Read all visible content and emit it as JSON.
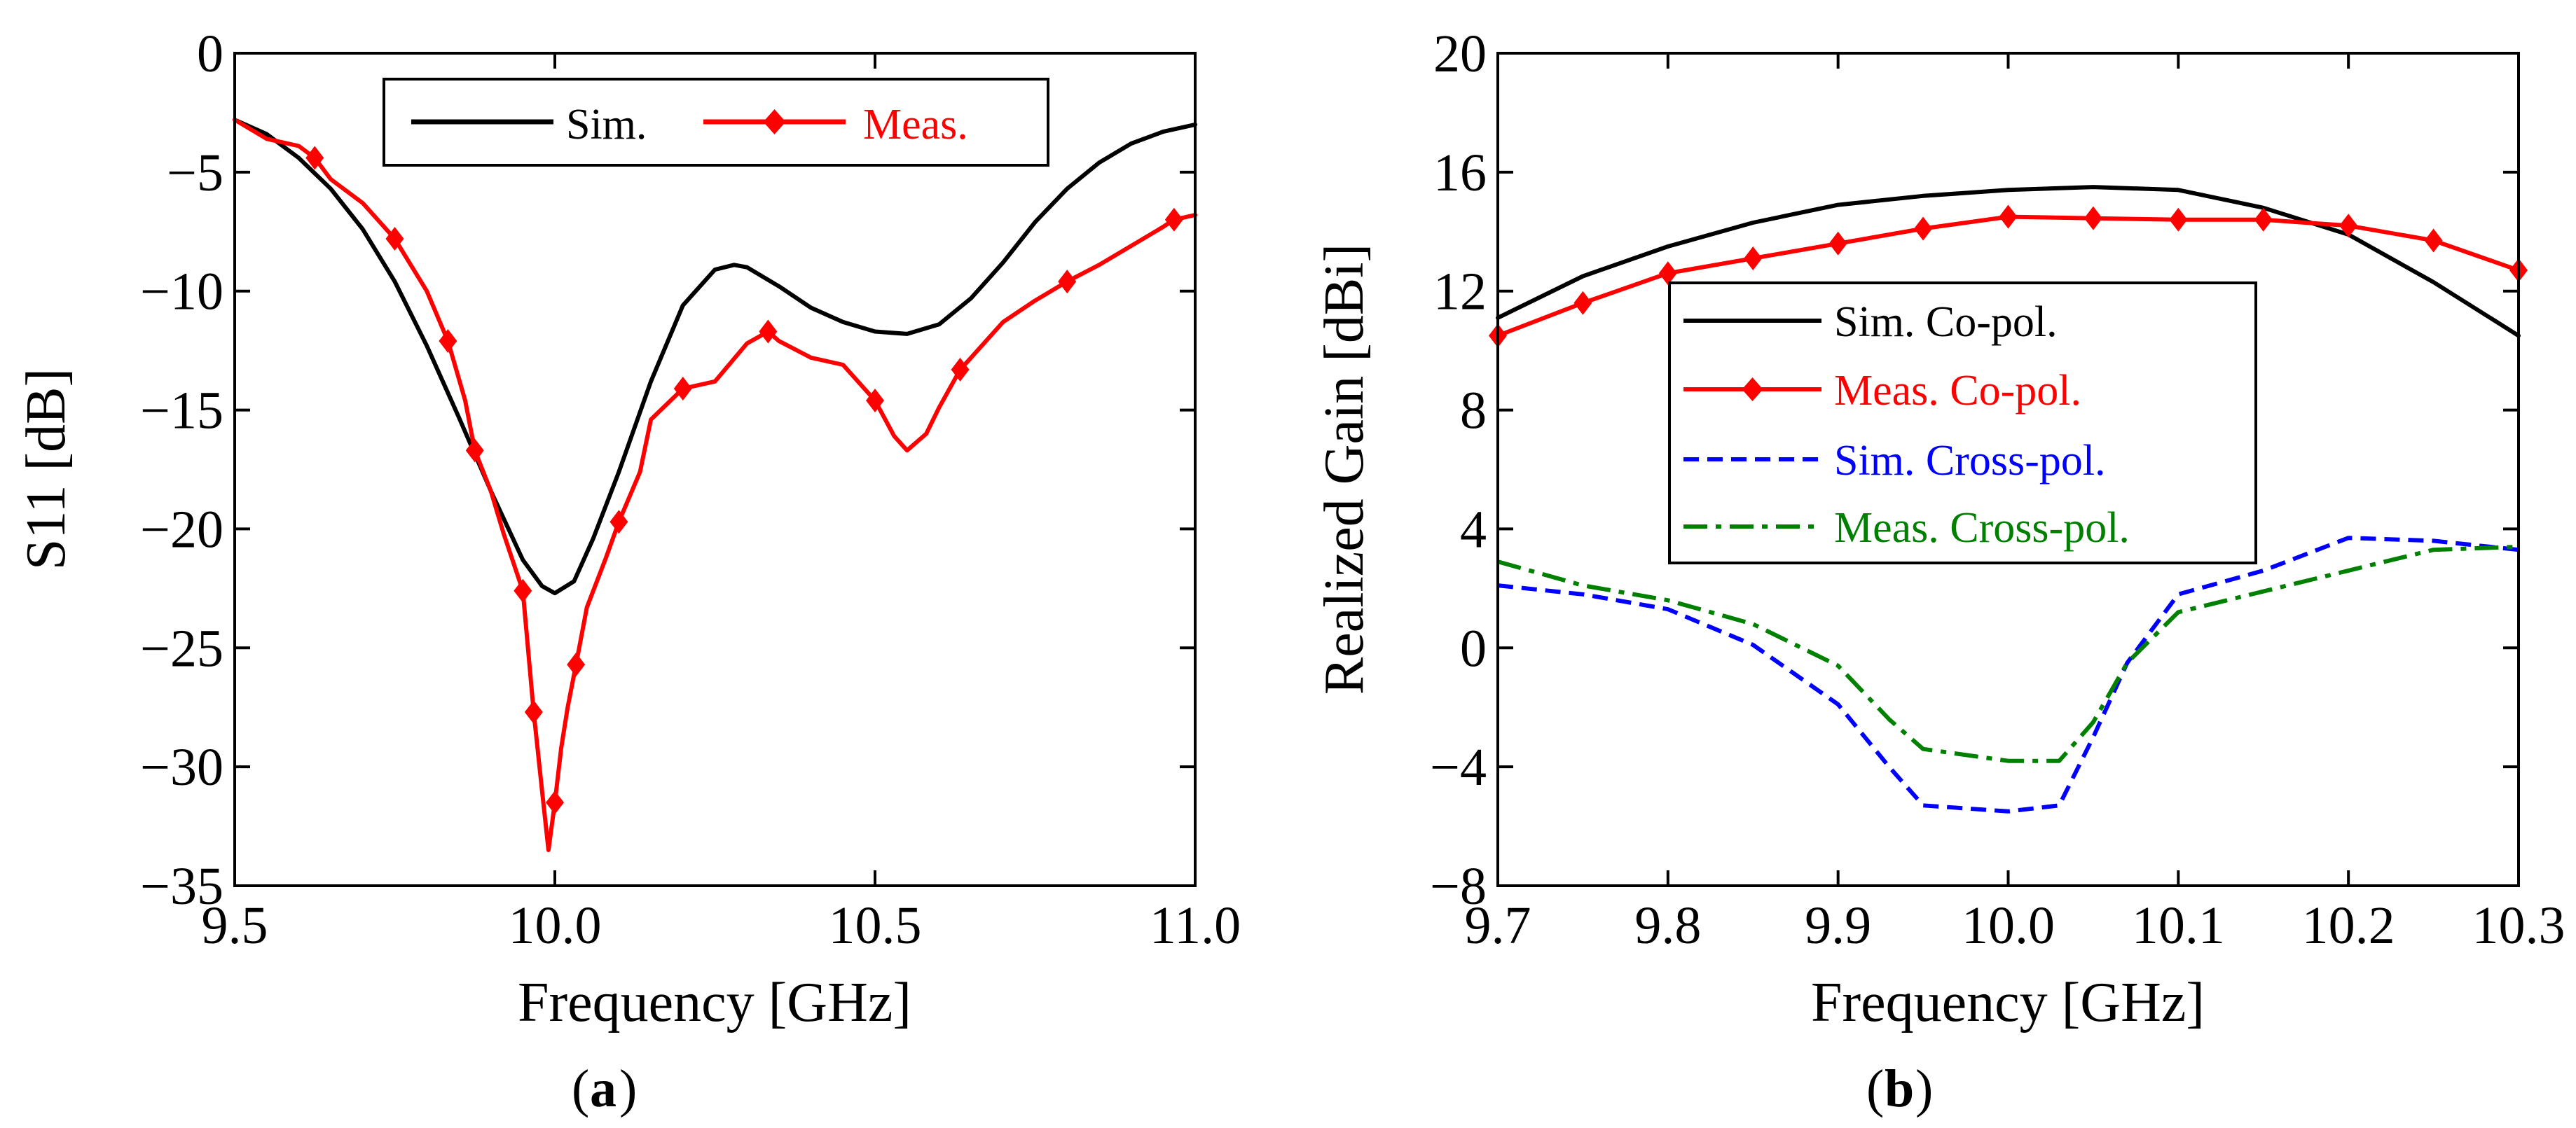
{
  "chart_data": [
    {
      "type": "line",
      "panel": "a",
      "caption_letter": "a",
      "xlabel": "Frequency [GHz]",
      "ylabel": "S11 [dB]",
      "xlim": [
        9.5,
        11.0
      ],
      "ylim": [
        -35,
        0
      ],
      "xticks": [
        9.5,
        10.0,
        10.5,
        11.0
      ],
      "xtick_labels": [
        "9.5",
        "10.0",
        "10.5",
        "11.0"
      ],
      "yticks": [
        0,
        -5,
        -10,
        -15,
        -20,
        -25,
        -30,
        -35
      ],
      "ytick_labels": [
        "0",
        "−5",
        "−10",
        "−15",
        "−20",
        "−25",
        "−30",
        "−35"
      ],
      "legend_position": "top",
      "series": [
        {
          "name": "Sim.",
          "color": "#000000",
          "style": "solid",
          "marker": "none",
          "x": [
            9.5,
            9.55,
            9.6,
            9.65,
            9.7,
            9.75,
            9.8,
            9.85,
            9.9,
            9.95,
            9.98,
            10.0,
            10.03,
            10.06,
            10.1,
            10.15,
            10.2,
            10.25,
            10.28,
            10.3,
            10.35,
            10.4,
            10.45,
            10.5,
            10.55,
            10.6,
            10.65,
            10.7,
            10.75,
            10.8,
            10.85,
            10.9,
            10.95,
            11.0
          ],
          "y": [
            -2.8,
            -3.4,
            -4.4,
            -5.7,
            -7.4,
            -9.6,
            -12.3,
            -15.3,
            -18.4,
            -21.3,
            -22.4,
            -22.7,
            -22.2,
            -20.4,
            -17.6,
            -13.8,
            -10.6,
            -9.1,
            -8.9,
            -9.0,
            -9.8,
            -10.7,
            -11.3,
            -11.7,
            -11.8,
            -11.4,
            -10.3,
            -8.8,
            -7.1,
            -5.7,
            -4.6,
            -3.8,
            -3.3,
            -3.0
          ]
        },
        {
          "name": "Meas.",
          "color": "#ff0000",
          "style": "solid",
          "marker": "diamond",
          "x": [
            9.5,
            9.55,
            9.6,
            9.625,
            9.65,
            9.7,
            9.75,
            9.8,
            9.833,
            9.86,
            9.875,
            9.9,
            9.92,
            9.95,
            9.967,
            9.98,
            9.99,
            10.0,
            10.01,
            10.02,
            10.033,
            10.05,
            10.08,
            10.1,
            10.133,
            10.15,
            10.2,
            10.25,
            10.3,
            10.333,
            10.35,
            10.4,
            10.45,
            10.5,
            10.53,
            10.55,
            10.58,
            10.6,
            10.633,
            10.65,
            10.7,
            10.75,
            10.8,
            10.85,
            10.9,
            10.95,
            10.967,
            11.0
          ],
          "y": [
            -2.8,
            -3.6,
            -3.9,
            -4.4,
            -5.3,
            -6.3,
            -7.8,
            -10.0,
            -12.1,
            -14.6,
            -16.7,
            -18.4,
            -20.2,
            -22.6,
            -27.7,
            -31.0,
            -33.5,
            -31.5,
            -29.2,
            -27.5,
            -25.7,
            -23.3,
            -21.2,
            -19.7,
            -17.6,
            -15.4,
            -14.1,
            -13.8,
            -12.2,
            -11.7,
            -12.1,
            -12.8,
            -13.1,
            -14.6,
            -16.1,
            -16.7,
            -16.0,
            -14.9,
            -13.3,
            -12.8,
            -11.3,
            -10.4,
            -9.6,
            -8.9,
            -8.1,
            -7.3,
            -7.0,
            -6.8
          ]
        }
      ],
      "markers": [
        {
          "series": "Meas.",
          "x": 9.625,
          "y": -4.4
        },
        {
          "series": "Meas.",
          "x": 9.75,
          "y": -7.8
        },
        {
          "series": "Meas.",
          "x": 9.833,
          "y": -12.1
        },
        {
          "series": "Meas.",
          "x": 9.875,
          "y": -16.7
        },
        {
          "series": "Meas.",
          "x": 9.95,
          "y": -22.6
        },
        {
          "series": "Meas.",
          "x": 9.967,
          "y": -27.7
        },
        {
          "series": "Meas.",
          "x": 10.0,
          "y": -31.5
        },
        {
          "series": "Meas.",
          "x": 10.033,
          "y": -25.7
        },
        {
          "series": "Meas.",
          "x": 10.1,
          "y": -19.7
        },
        {
          "series": "Meas.",
          "x": 10.2,
          "y": -14.1
        },
        {
          "series": "Meas.",
          "x": 10.333,
          "y": -11.7
        },
        {
          "series": "Meas.",
          "x": 10.5,
          "y": -14.6
        },
        {
          "series": "Meas.",
          "x": 10.633,
          "y": -13.3
        },
        {
          "series": "Meas.",
          "x": 10.8,
          "y": -9.6
        },
        {
          "series": "Meas.",
          "x": 10.967,
          "y": -7.0
        }
      ]
    },
    {
      "type": "line",
      "panel": "b",
      "caption_letter": "b",
      "xlabel": "Frequency [GHz]",
      "ylabel": "Realized Gain [dBi]",
      "xlim": [
        9.7,
        10.3
      ],
      "ylim": [
        -8,
        20
      ],
      "xticks": [
        9.7,
        9.8,
        9.9,
        10.0,
        10.1,
        10.2,
        10.3
      ],
      "xtick_labels": [
        "9.7",
        "9.8",
        "9.9",
        "10.0",
        "10.1",
        "10.2",
        "10.3"
      ],
      "yticks": [
        20,
        16,
        12,
        8,
        4,
        0,
        -4,
        -8
      ],
      "ytick_labels": [
        "20",
        "16",
        "12",
        "8",
        "4",
        "0",
        "−4",
        "−8"
      ],
      "legend_position": "center-left",
      "series": [
        {
          "name": "Sim. Co-pol.",
          "color": "#000000",
          "style": "solid",
          "marker": "none",
          "x": [
            9.7,
            9.75,
            9.8,
            9.85,
            9.9,
            9.95,
            10.0,
            10.05,
            10.1,
            10.15,
            10.2,
            10.25,
            10.3
          ],
          "y": [
            11.1,
            12.5,
            13.5,
            14.3,
            14.9,
            15.2,
            15.4,
            15.5,
            15.4,
            14.8,
            13.9,
            12.3,
            10.5
          ]
        },
        {
          "name": "Meas. Co-pol.",
          "color": "#ff0000",
          "style": "solid",
          "marker": "diamond",
          "x": [
            9.7,
            9.75,
            9.8,
            9.85,
            9.9,
            9.95,
            10.0,
            10.05,
            10.1,
            10.15,
            10.2,
            10.25,
            10.3
          ],
          "y": [
            10.5,
            11.6,
            12.6,
            13.1,
            13.6,
            14.1,
            14.5,
            14.45,
            14.4,
            14.4,
            14.2,
            13.7,
            12.7
          ]
        },
        {
          "name": "Sim. Cross-pol.",
          "color": "#0000ff",
          "style": "dash",
          "marker": "none",
          "x": [
            9.7,
            9.75,
            9.8,
            9.85,
            9.9,
            9.93,
            9.95,
            10.0,
            10.03,
            10.05,
            10.07,
            10.1,
            10.15,
            10.2,
            10.25,
            10.3
          ],
          "y": [
            2.1,
            1.8,
            1.3,
            0.1,
            -1.9,
            -4.0,
            -5.3,
            -5.5,
            -5.3,
            -3.0,
            -0.5,
            1.8,
            2.6,
            3.7,
            3.6,
            3.3
          ]
        },
        {
          "name": "Meas. Cross-pol.",
          "color": "#008000",
          "style": "dashdot",
          "marker": "none",
          "x": [
            9.7,
            9.75,
            9.8,
            9.85,
            9.9,
            9.93,
            9.95,
            10.0,
            10.03,
            10.05,
            10.07,
            10.1,
            10.15,
            10.2,
            10.25,
            10.3
          ],
          "y": [
            2.9,
            2.1,
            1.6,
            0.8,
            -0.6,
            -2.4,
            -3.4,
            -3.8,
            -3.8,
            -2.5,
            -0.5,
            1.2,
            1.9,
            2.6,
            3.3,
            3.4
          ]
        }
      ]
    }
  ]
}
